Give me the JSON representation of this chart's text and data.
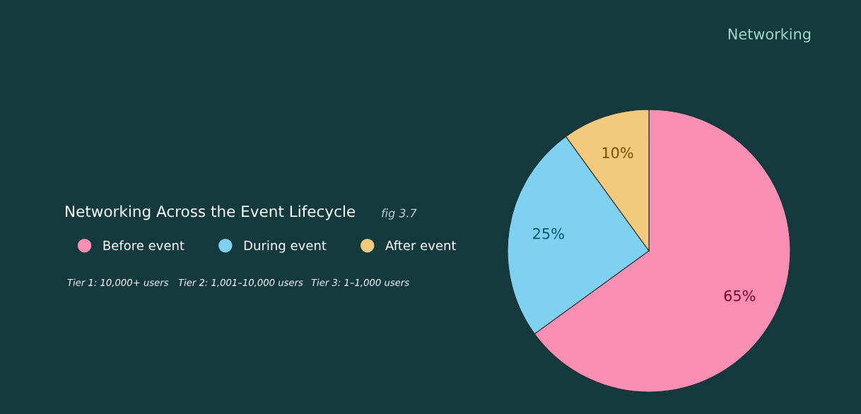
{
  "chart_data": {
    "type": "pie",
    "title": "Networking Across the Event Lifecycle",
    "subtitle": "fig 3.7",
    "categories": [
      "Before event",
      "During event",
      "After event"
    ],
    "values": [
      65,
      25,
      10
    ],
    "colors": [
      "#f68fb2",
      "#80d0f1",
      "#f3c97d"
    ],
    "value_labels": [
      "65%",
      "25%",
      "10%"
    ],
    "legend": "left",
    "annotations": [
      "Networking",
      "Tier 1: 10,000+ users",
      "Tier 2: 1,001–10,000 users",
      "Tier 3: 1–1,000 users"
    ]
  }
}
